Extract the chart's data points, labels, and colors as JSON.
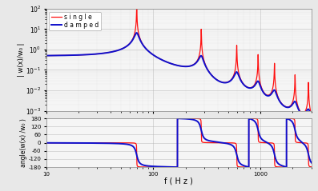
{
  "xlabel": "f ( H z )",
  "ylabel_top": "| w(x)/w₀ |",
  "ylabel_bottom": "angle(w(x) /w₀ )",
  "legend_single": "s i n g l e",
  "legend_damped": "d a m p e d",
  "color_single": "#FF1010",
  "color_damped": "#1010CC",
  "f_min": 10,
  "f_max": 3000,
  "mag_ylim": [
    0.001,
    100.0
  ],
  "phase_ylim": [
    -180,
    180
  ],
  "phase_yticks": [
    -180,
    -120,
    -60,
    0,
    60,
    120,
    180
  ],
  "background_color": "#E8E8E8",
  "axes_background": "#F5F5F5",
  "lw_single": 0.9,
  "lw_damped": 1.4
}
